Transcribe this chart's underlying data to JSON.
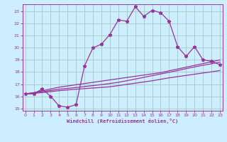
{
  "title": "",
  "xlabel": "Windchill (Refroidissement éolien,°C)",
  "ylabel": "",
  "bg_color": "#cceeff",
  "grid_color": "#aacccc",
  "line_color": "#993399",
  "x_values": [
    0,
    1,
    2,
    3,
    4,
    5,
    6,
    7,
    8,
    9,
    10,
    11,
    12,
    13,
    14,
    15,
    16,
    17,
    18,
    19,
    20,
    21,
    22,
    23
  ],
  "ylim": [
    14.8,
    23.6
  ],
  "xlim": [
    -0.3,
    23.3
  ],
  "yticks": [
    15,
    16,
    17,
    18,
    19,
    20,
    21,
    22,
    23
  ],
  "xticks": [
    0,
    1,
    2,
    3,
    4,
    5,
    6,
    7,
    8,
    9,
    10,
    11,
    12,
    13,
    14,
    15,
    16,
    17,
    18,
    19,
    20,
    21,
    22,
    23
  ],
  "curve1_y": [
    16.2,
    16.2,
    16.6,
    16.0,
    15.2,
    15.1,
    15.3,
    18.5,
    20.0,
    20.3,
    21.1,
    22.3,
    22.2,
    23.4,
    22.6,
    23.1,
    22.9,
    22.2,
    20.1,
    19.3,
    20.1,
    19.0,
    18.9,
    18.6
  ],
  "curve2_y": [
    16.2,
    16.3,
    16.45,
    16.6,
    16.75,
    16.85,
    16.95,
    17.05,
    17.15,
    17.25,
    17.35,
    17.45,
    17.55,
    17.65,
    17.75,
    17.85,
    17.95,
    18.1,
    18.25,
    18.4,
    18.55,
    18.7,
    18.85,
    19.0
  ],
  "curve3_y": [
    16.2,
    16.28,
    16.38,
    16.48,
    16.58,
    16.65,
    16.72,
    16.8,
    16.88,
    16.96,
    17.05,
    17.15,
    17.28,
    17.42,
    17.56,
    17.7,
    17.84,
    17.98,
    18.12,
    18.28,
    18.42,
    18.56,
    18.68,
    18.82
  ],
  "curve4_y": [
    16.2,
    16.24,
    16.3,
    16.38,
    16.46,
    16.52,
    16.58,
    16.63,
    16.68,
    16.73,
    16.78,
    16.88,
    16.98,
    17.08,
    17.18,
    17.28,
    17.4,
    17.52,
    17.62,
    17.72,
    17.82,
    17.92,
    18.02,
    18.12
  ]
}
